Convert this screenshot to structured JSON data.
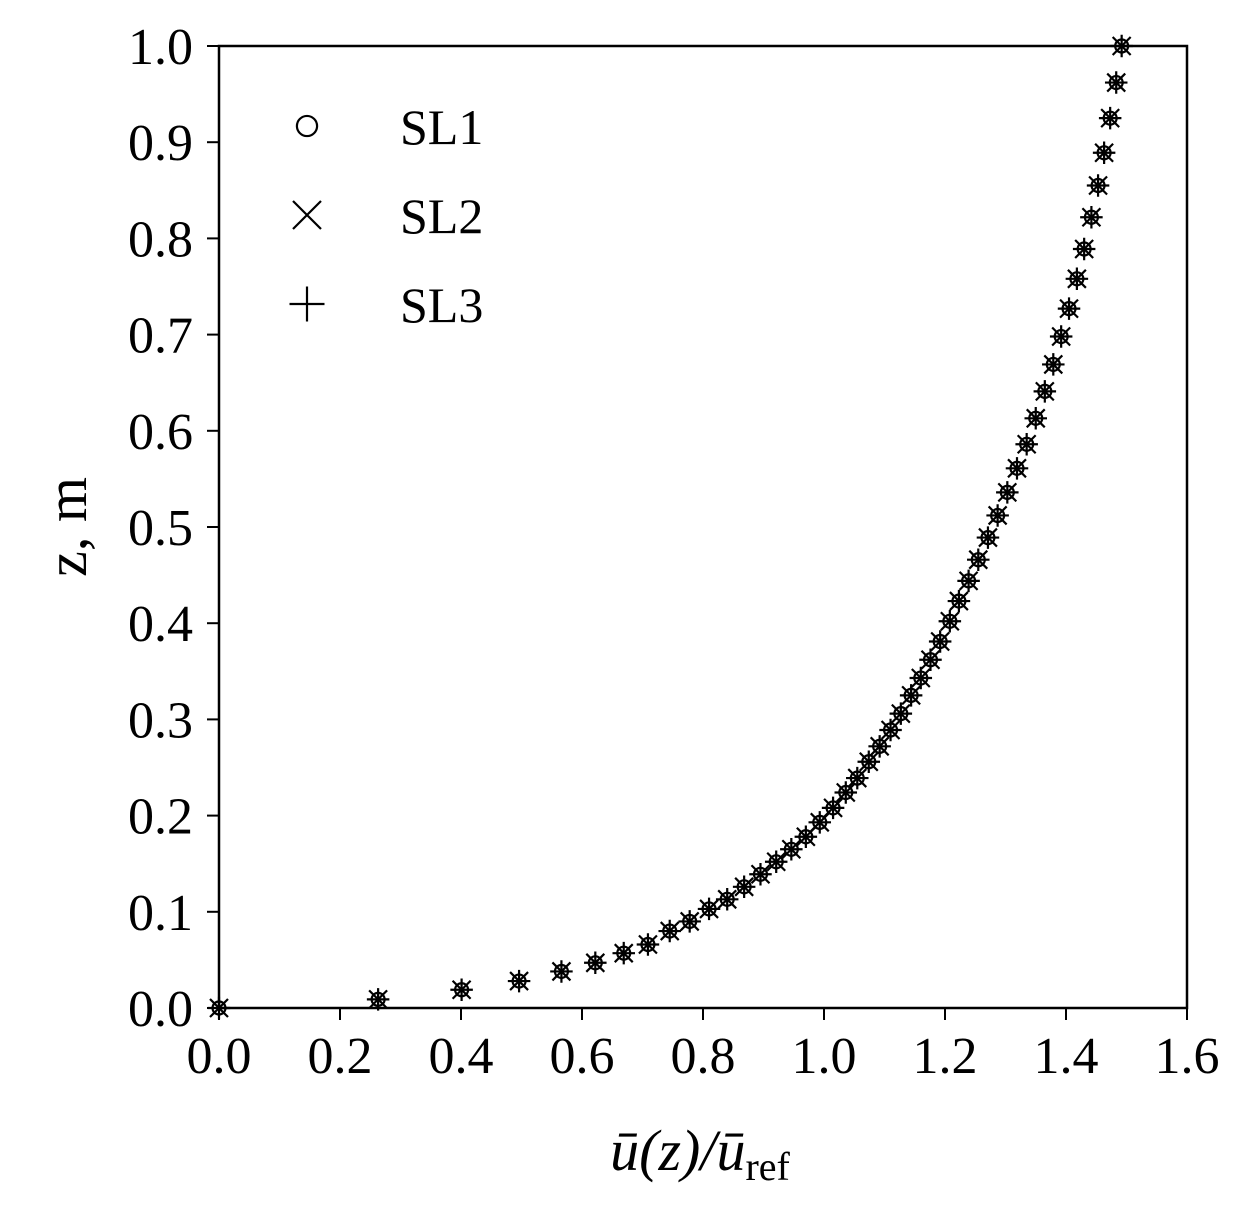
{
  "chart_data": {
    "type": "scatter",
    "title": "",
    "xlabel": {
      "main": "ū(z)/ū",
      "subscript": "ref"
    },
    "ylabel": "z, m",
    "xlim": [
      0.0,
      1.6
    ],
    "ylim": [
      0.0,
      1.0
    ],
    "xticks": [
      "0.0",
      "0.2",
      "0.4",
      "0.6",
      "0.8",
      "1.0",
      "1.2",
      "1.4",
      "1.6"
    ],
    "yticks": [
      "0.0",
      "0.1",
      "0.2",
      "0.3",
      "0.4",
      "0.5",
      "0.6",
      "0.7",
      "0.8",
      "0.9",
      "1.0"
    ],
    "grid": false,
    "legend_position": "top-left",
    "color": "#000000",
    "series": [
      {
        "name": "SL1",
        "marker": "circle",
        "points": [
          [
            0.0,
            0.0
          ],
          [
            0.263,
            0.009
          ],
          [
            0.401,
            0.019
          ],
          [
            0.496,
            0.028
          ],
          [
            0.566,
            0.038
          ],
          [
            0.622,
            0.047
          ],
          [
            0.669,
            0.057
          ],
          [
            0.709,
            0.066
          ],
          [
            0.745,
            0.08
          ],
          [
            0.778,
            0.09
          ],
          [
            0.81,
            0.103
          ],
          [
            0.84,
            0.113
          ],
          [
            0.868,
            0.126
          ],
          [
            0.895,
            0.139
          ],
          [
            0.921,
            0.152
          ],
          [
            0.946,
            0.165
          ],
          [
            0.97,
            0.178
          ],
          [
            0.993,
            0.193
          ],
          [
            1.015,
            0.208
          ],
          [
            1.036,
            0.224
          ],
          [
            1.055,
            0.239
          ],
          [
            1.074,
            0.256
          ],
          [
            1.092,
            0.272
          ],
          [
            1.11,
            0.289
          ],
          [
            1.127,
            0.306
          ],
          [
            1.144,
            0.325
          ],
          [
            1.16,
            0.343
          ],
          [
            1.176,
            0.362
          ],
          [
            1.192,
            0.381
          ],
          [
            1.208,
            0.402
          ],
          [
            1.223,
            0.423
          ],
          [
            1.239,
            0.444
          ],
          [
            1.255,
            0.466
          ],
          [
            1.271,
            0.489
          ],
          [
            1.287,
            0.512
          ],
          [
            1.303,
            0.536
          ],
          [
            1.319,
            0.561
          ],
          [
            1.335,
            0.586
          ],
          [
            1.35,
            0.613
          ],
          [
            1.365,
            0.641
          ],
          [
            1.379,
            0.669
          ],
          [
            1.392,
            0.698
          ],
          [
            1.405,
            0.727
          ],
          [
            1.418,
            0.758
          ],
          [
            1.43,
            0.789
          ],
          [
            1.442,
            0.822
          ],
          [
            1.453,
            0.855
          ],
          [
            1.463,
            0.889
          ],
          [
            1.473,
            0.925
          ],
          [
            1.483,
            0.962
          ],
          [
            1.492,
            1.0
          ]
        ]
      },
      {
        "name": "SL2",
        "marker": "x",
        "points": [
          [
            0.0,
            0.0
          ],
          [
            0.263,
            0.009
          ],
          [
            0.401,
            0.019
          ],
          [
            0.496,
            0.028
          ],
          [
            0.566,
            0.038
          ],
          [
            0.622,
            0.047
          ],
          [
            0.669,
            0.057
          ],
          [
            0.709,
            0.066
          ],
          [
            0.745,
            0.08
          ],
          [
            0.778,
            0.09
          ],
          [
            0.81,
            0.103
          ],
          [
            0.84,
            0.113
          ],
          [
            0.868,
            0.126
          ],
          [
            0.895,
            0.139
          ],
          [
            0.921,
            0.152
          ],
          [
            0.946,
            0.165
          ],
          [
            0.97,
            0.178
          ],
          [
            0.993,
            0.193
          ],
          [
            1.015,
            0.208
          ],
          [
            1.036,
            0.224
          ],
          [
            1.055,
            0.239
          ],
          [
            1.074,
            0.256
          ],
          [
            1.092,
            0.272
          ],
          [
            1.11,
            0.289
          ],
          [
            1.127,
            0.306
          ],
          [
            1.144,
            0.325
          ],
          [
            1.16,
            0.343
          ],
          [
            1.176,
            0.362
          ],
          [
            1.192,
            0.381
          ],
          [
            1.208,
            0.402
          ],
          [
            1.223,
            0.423
          ],
          [
            1.239,
            0.444
          ],
          [
            1.255,
            0.466
          ],
          [
            1.271,
            0.489
          ],
          [
            1.287,
            0.512
          ],
          [
            1.303,
            0.536
          ],
          [
            1.319,
            0.561
          ],
          [
            1.335,
            0.586
          ],
          [
            1.35,
            0.613
          ],
          [
            1.365,
            0.641
          ],
          [
            1.379,
            0.669
          ],
          [
            1.392,
            0.698
          ],
          [
            1.405,
            0.727
          ],
          [
            1.418,
            0.758
          ],
          [
            1.43,
            0.789
          ],
          [
            1.442,
            0.822
          ],
          [
            1.453,
            0.855
          ],
          [
            1.463,
            0.889
          ],
          [
            1.473,
            0.925
          ],
          [
            1.483,
            0.962
          ],
          [
            1.492,
            1.0
          ]
        ]
      },
      {
        "name": "SL3",
        "marker": "plus",
        "points": [
          [
            0.0,
            0.0
          ],
          [
            0.263,
            0.009
          ],
          [
            0.401,
            0.019
          ],
          [
            0.496,
            0.028
          ],
          [
            0.566,
            0.038
          ],
          [
            0.622,
            0.047
          ],
          [
            0.669,
            0.057
          ],
          [
            0.709,
            0.066
          ],
          [
            0.745,
            0.08
          ],
          [
            0.778,
            0.09
          ],
          [
            0.81,
            0.103
          ],
          [
            0.84,
            0.113
          ],
          [
            0.868,
            0.126
          ],
          [
            0.895,
            0.139
          ],
          [
            0.921,
            0.152
          ],
          [
            0.946,
            0.165
          ],
          [
            0.97,
            0.178
          ],
          [
            0.993,
            0.193
          ],
          [
            1.015,
            0.208
          ],
          [
            1.036,
            0.224
          ],
          [
            1.055,
            0.239
          ],
          [
            1.074,
            0.256
          ],
          [
            1.092,
            0.272
          ],
          [
            1.11,
            0.289
          ],
          [
            1.127,
            0.306
          ],
          [
            1.144,
            0.325
          ],
          [
            1.16,
            0.343
          ],
          [
            1.176,
            0.362
          ],
          [
            1.192,
            0.381
          ],
          [
            1.208,
            0.402
          ],
          [
            1.223,
            0.423
          ],
          [
            1.239,
            0.444
          ],
          [
            1.255,
            0.466
          ],
          [
            1.271,
            0.489
          ],
          [
            1.287,
            0.512
          ],
          [
            1.303,
            0.536
          ],
          [
            1.319,
            0.561
          ],
          [
            1.335,
            0.586
          ],
          [
            1.35,
            0.613
          ],
          [
            1.365,
            0.641
          ],
          [
            1.379,
            0.669
          ],
          [
            1.392,
            0.698
          ],
          [
            1.405,
            0.727
          ],
          [
            1.418,
            0.758
          ],
          [
            1.43,
            0.789
          ],
          [
            1.442,
            0.822
          ],
          [
            1.453,
            0.855
          ],
          [
            1.463,
            0.889
          ],
          [
            1.473,
            0.925
          ],
          [
            1.483,
            0.962
          ],
          [
            1.492,
            1.0
          ]
        ]
      }
    ]
  }
}
